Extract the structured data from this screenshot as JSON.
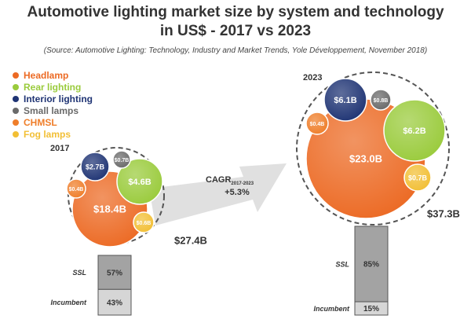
{
  "title_line1": "Automotive lighting market size by system and technology",
  "title_line2": "in US$ - 2017 vs 2023",
  "source": "(Source: Automotive Lighting: Technology, Industry and Market Trends, Yole Développement, November 2018)",
  "colors": {
    "Headlamp": "#ec6a24",
    "Rear lighting": "#9acb3c",
    "Interior lighting": "#1f3474",
    "Small lamps": "#6a6a6a",
    "CHMSL": "#ef7e2a",
    "Fog lamps": "#f2bf35",
    "arrow": "#e0e0e0",
    "bar_ssl": "#a3a3a3",
    "bar_incumbent": "#d6d6d6"
  },
  "chart_data": {
    "type": "bubble",
    "unit": "US$",
    "legend": [
      "Headlamp",
      "Rear lighting",
      "Interior lighting",
      "Small lamps",
      "CHMSL",
      "Fog lamps"
    ],
    "legend_position": "top-left",
    "years": [
      {
        "year": "2017",
        "total_label": "$27.4B",
        "bubbles": [
          {
            "series": "Headlamp",
            "label": "$18.4B"
          },
          {
            "series": "Rear lighting",
            "label": "$4.6B"
          },
          {
            "series": "Interior lighting",
            "label": "$2.7B"
          },
          {
            "series": "Small lamps",
            "label": "$0.7B"
          },
          {
            "series": "CHMSL",
            "label": "$0.4B"
          },
          {
            "series": "Fog lamps",
            "label": "$0.6B"
          }
        ],
        "technology_split": [
          {
            "name": "SSL",
            "value": 57,
            "label": "57%"
          },
          {
            "name": "Incumbent",
            "value": 43,
            "label": "43%"
          }
        ]
      },
      {
        "year": "2023",
        "total_label": "$37.3B",
        "bubbles": [
          {
            "series": "Headlamp",
            "label": "$23.0B"
          },
          {
            "series": "Rear lighting",
            "label": "$6.2B"
          },
          {
            "series": "Interior lighting",
            "label": "$6.1B"
          },
          {
            "series": "Small lamps",
            "label": "$0.8B"
          },
          {
            "series": "CHMSL",
            "label": "$0.4B"
          },
          {
            "series": "Fog lamps",
            "label": "$0.7B"
          }
        ],
        "technology_split": [
          {
            "name": "SSL",
            "value": 85,
            "label": "85%"
          },
          {
            "name": "Incumbent",
            "value": 15,
            "label": "15%"
          }
        ]
      }
    ],
    "cagr": {
      "label": "CAGR",
      "period": "2017-2023",
      "value": "+5.3%"
    }
  }
}
